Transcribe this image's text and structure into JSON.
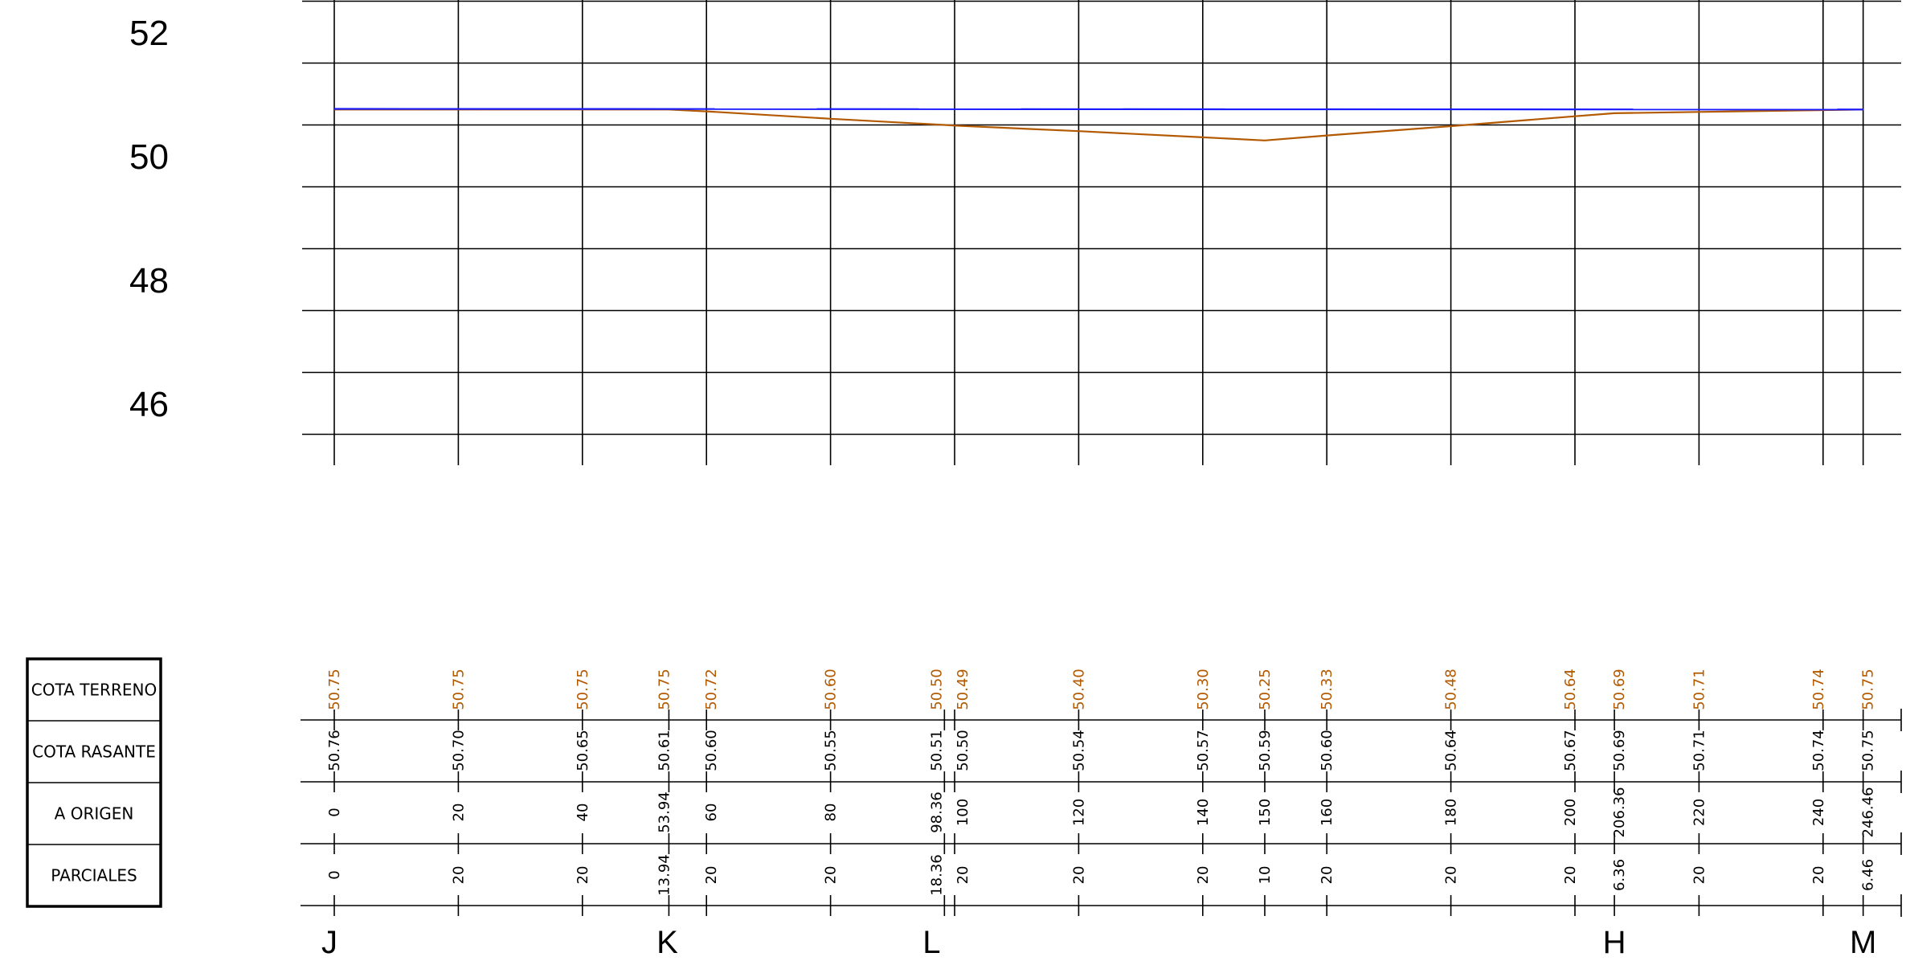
{
  "colors": {
    "terrain": "#b35900",
    "grade": "#1a1aff",
    "grid": "#000000"
  },
  "chart_data": {
    "type": "line",
    "x_unit": "m",
    "xlim": [
      0,
      252
    ],
    "ylim": [
      45,
      53
    ],
    "y_ticks": [
      {
        "value": 52,
        "label": "52"
      },
      {
        "value": 50,
        "label": "50"
      },
      {
        "value": 48,
        "label": "48"
      },
      {
        "value": 46,
        "label": "46"
      }
    ],
    "series": [
      {
        "key": "terreno",
        "color": "#b35900",
        "x": [
          0,
          53.94,
          60,
          80,
          98.36,
          100,
          120,
          140,
          150,
          160,
          180,
          200,
          206.36,
          220,
          240,
          246.46
        ],
        "values": [
          50.75,
          50.75,
          50.72,
          50.6,
          50.5,
          50.49,
          50.4,
          50.3,
          50.25,
          50.33,
          50.48,
          50.64,
          50.69,
          50.71,
          50.74,
          50.75
        ]
      },
      {
        "key": "rasante",
        "color": "#1a1aff",
        "x": [
          0,
          246.46
        ],
        "values": [
          50.76,
          50.75
        ]
      }
    ]
  },
  "guitar": {
    "row_labels": [
      "COTA TERRENO",
      "COTA RASANTE",
      "A ORIGEN",
      "PARCIALES"
    ],
    "columns": [
      {
        "x": 0,
        "terreno": "50.75",
        "rasante": "50.76",
        "origen": "0",
        "parcial": "0",
        "pk": "J"
      },
      {
        "x": 20,
        "terreno": "50.75",
        "rasante": "50.70",
        "origen": "20",
        "parcial": "20",
        "pk": ""
      },
      {
        "x": 40,
        "terreno": "50.75",
        "rasante": "50.65",
        "origen": "40",
        "parcial": "20",
        "pk": ""
      },
      {
        "x": 53.94,
        "terreno": "50.75",
        "rasante": "50.61",
        "origen": "53.94",
        "parcial": "13.94",
        "pk": "K"
      },
      {
        "x": 60,
        "terreno": "50.72",
        "rasante": "50.60",
        "origen": "60",
        "parcial": "20",
        "pk": ""
      },
      {
        "x": 80,
        "terreno": "50.60",
        "rasante": "50.55",
        "origen": "80",
        "parcial": "20",
        "pk": ""
      },
      {
        "x": 98.36,
        "terreno": "50.50",
        "rasante": "50.51",
        "origen": "98.36",
        "parcial": "18.36",
        "pk": "L"
      },
      {
        "x": 100,
        "terreno": "50.49",
        "rasante": "50.50",
        "origen": "100",
        "parcial": "20",
        "pk": ""
      },
      {
        "x": 120,
        "terreno": "50.40",
        "rasante": "50.54",
        "origen": "120",
        "parcial": "20",
        "pk": ""
      },
      {
        "x": 140,
        "terreno": "50.30",
        "rasante": "50.57",
        "origen": "140",
        "parcial": "20",
        "pk": ""
      },
      {
        "x": 150,
        "terreno": "50.25",
        "rasante": "50.59",
        "origen": "150",
        "parcial": "10",
        "pk": ""
      },
      {
        "x": 160,
        "terreno": "50.33",
        "rasante": "50.60",
        "origen": "160",
        "parcial": "20",
        "pk": ""
      },
      {
        "x": 180,
        "terreno": "50.48",
        "rasante": "50.64",
        "origen": "180",
        "parcial": "20",
        "pk": ""
      },
      {
        "x": 200,
        "terreno": "50.64",
        "rasante": "50.67",
        "origen": "200",
        "parcial": "20",
        "pk": ""
      },
      {
        "x": 206.36,
        "terreno": "50.69",
        "rasante": "50.69",
        "origen": "206.36",
        "parcial": "6.36",
        "pk": "H"
      },
      {
        "x": 220,
        "terreno": "50.71",
        "rasante": "50.71",
        "origen": "220",
        "parcial": "20",
        "pk": ""
      },
      {
        "x": 240,
        "terreno": "50.74",
        "rasante": "50.74",
        "origen": "240",
        "parcial": "20",
        "pk": ""
      },
      {
        "x": 246.46,
        "terreno": "50.75",
        "rasante": "50.75",
        "origen": "246.46",
        "parcial": "6.46",
        "pk": "M"
      }
    ]
  }
}
